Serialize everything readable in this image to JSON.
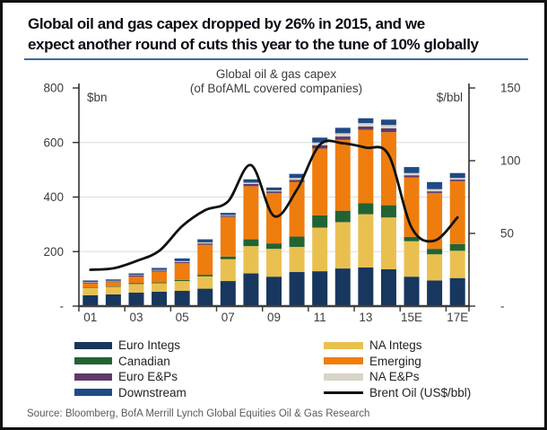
{
  "header": {
    "title_line1": "Global oil and gas capex dropped by 26% in 2015, and we",
    "title_line2": "expect another round of cuts this year to the tune of 10% globally"
  },
  "source": "Source: Bloomberg, BofA Merrill Lynch Global Equities Oil & Gas Research",
  "colors": {
    "title_text": "#0c0c16",
    "divider_blue": "#3a6ba5",
    "axis_text": "#3d3d3d",
    "gridline": "#dcdcdc",
    "axis_line": "#222222",
    "x_axis_line": "#3f3f3f"
  },
  "chart_data": {
    "type": "bar",
    "subtype": "stacked-bar-with-line",
    "title": "Global oil & gas capex",
    "subtitle": "(of BofAML covered companies)",
    "left_axis": {
      "label": "$bn",
      "min": 0,
      "max": 800,
      "tick_values": [
        800,
        600,
        400,
        200,
        0
      ],
      "tick_labels": [
        "800",
        "600",
        "400",
        "200",
        "-"
      ]
    },
    "right_axis": {
      "label": "$/bbl",
      "min": 0,
      "max": 150,
      "tick_values": [
        150,
        100,
        50,
        0
      ],
      "tick_labels": [
        "150",
        "100",
        "50",
        "-"
      ]
    },
    "grid": "horizontal gridlines at 200, 400, 600 (left axis)",
    "legend_position": "bottom",
    "categories": [
      "01",
      "02",
      "03",
      "04",
      "05",
      "06",
      "07",
      "08",
      "09",
      "10",
      "11",
      "12",
      "13",
      "14",
      "15E",
      "16E",
      "17E"
    ],
    "x_tick_labels": [
      "01",
      "03",
      "05",
      "07",
      "09",
      "11",
      "13",
      "15E",
      "17E"
    ],
    "series": [
      {
        "name": "Euro Integs",
        "color": "#17375e",
        "values": [
          40,
          43,
          50,
          53,
          56,
          64,
          92,
          120,
          108,
          125,
          128,
          138,
          142,
          135,
          108,
          94,
          103
        ]
      },
      {
        "name": "NA Integs",
        "color": "#e9c050",
        "values": [
          26,
          27,
          31,
          31,
          36,
          45,
          80,
          100,
          102,
          92,
          160,
          170,
          195,
          190,
          130,
          96,
          100
        ]
      },
      {
        "name": "Canadian",
        "color": "#226334",
        "values": [
          2,
          2,
          3,
          3,
          4,
          6,
          10,
          25,
          20,
          38,
          45,
          42,
          40,
          45,
          16,
          20,
          25
        ]
      },
      {
        "name": "Emerging",
        "color": "#ee7d0e",
        "values": [
          16,
          16,
          24,
          40,
          62,
          110,
          145,
          195,
          185,
          200,
          245,
          260,
          270,
          268,
          218,
          205,
          230
        ]
      },
      {
        "name": "Euro E&Ps",
        "color": "#5f3a68",
        "values": [
          3,
          3,
          4,
          4,
          4,
          5,
          4,
          8,
          6,
          8,
          12,
          12,
          12,
          14,
          8,
          6,
          6
        ]
      },
      {
        "name": "NA E&Ps",
        "color": "#d8d4c8",
        "values": [
          2,
          2,
          2,
          2,
          3,
          4,
          3,
          5,
          4,
          7,
          10,
          12,
          12,
          12,
          8,
          8,
          6
        ]
      },
      {
        "name": "Downstream",
        "color": "#1f4a85",
        "values": [
          5,
          5,
          6,
          7,
          10,
          11,
          8,
          12,
          10,
          15,
          18,
          20,
          18,
          20,
          22,
          26,
          18
        ]
      }
    ],
    "line_series": {
      "name": "Brent Oil (US$/bbl)",
      "color": "#111111",
      "axis": "right",
      "values": [
        25,
        26,
        31,
        38,
        55,
        66,
        72,
        97,
        62,
        80,
        111,
        112,
        109,
        104,
        54,
        45,
        61
      ]
    }
  },
  "legend": {
    "columns": [
      [
        {
          "label": "Euro Integs",
          "color": "#17375e",
          "type": "bar"
        },
        {
          "label": "Canadian",
          "color": "#226334",
          "type": "bar"
        },
        {
          "label": "Euro E&Ps",
          "color": "#5f3a68",
          "type": "bar"
        },
        {
          "label": "Downstream",
          "color": "#1f4a85",
          "type": "bar"
        }
      ],
      [
        {
          "label": "NA Integs",
          "color": "#e9c050",
          "type": "bar"
        },
        {
          "label": "Emerging",
          "color": "#ee7d0e",
          "type": "bar"
        },
        {
          "label": "NA E&Ps",
          "color": "#d8d4c8",
          "type": "bar"
        },
        {
          "label": "Brent Oil (US$/bbl)",
          "color": "#111111",
          "type": "line"
        }
      ]
    ]
  }
}
